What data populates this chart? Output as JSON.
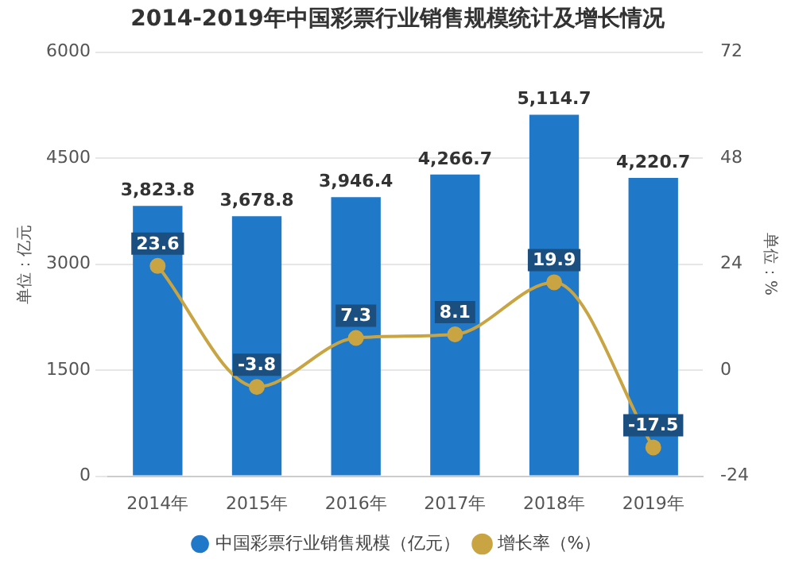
{
  "chart_data": {
    "type": "bar",
    "title": "2014-2019年中国彩票行业销售规模统计及增长情况",
    "categories": [
      "2014年",
      "2015年",
      "2016年",
      "2017年",
      "2018年",
      "2019年"
    ],
    "series": [
      {
        "name": "中国彩票行业销售规模（亿元）",
        "color": "#1f78c8",
        "values": [
          3823.8,
          3678.8,
          3946.4,
          4266.7,
          5114.7,
          4220.7
        ],
        "value_labels": [
          "3,823.8",
          "3,678.8",
          "3,946.4",
          "4,266.7",
          "5,114.7",
          "4,220.7"
        ]
      },
      {
        "name": "增长率（%）",
        "type": "line",
        "axis": "y2",
        "color": "#c9a443",
        "values": [
          23.6,
          -3.8,
          7.3,
          8.1,
          19.9,
          -17.5
        ],
        "value_labels": [
          "23.6",
          "-3.8",
          "7.3",
          "8.1",
          "19.9",
          "-17.5"
        ]
      }
    ],
    "ylabel": "单位：亿元",
    "y2label": "单位：%",
    "ylim": [
      0,
      6000
    ],
    "yticks": [
      0,
      1500,
      3000,
      4500,
      6000
    ],
    "y2lim": [
      -24,
      72
    ],
    "y2ticks": [
      -24,
      0,
      24,
      48,
      72
    ],
    "grid": "y",
    "legend": "bottom",
    "marker": "circle"
  }
}
